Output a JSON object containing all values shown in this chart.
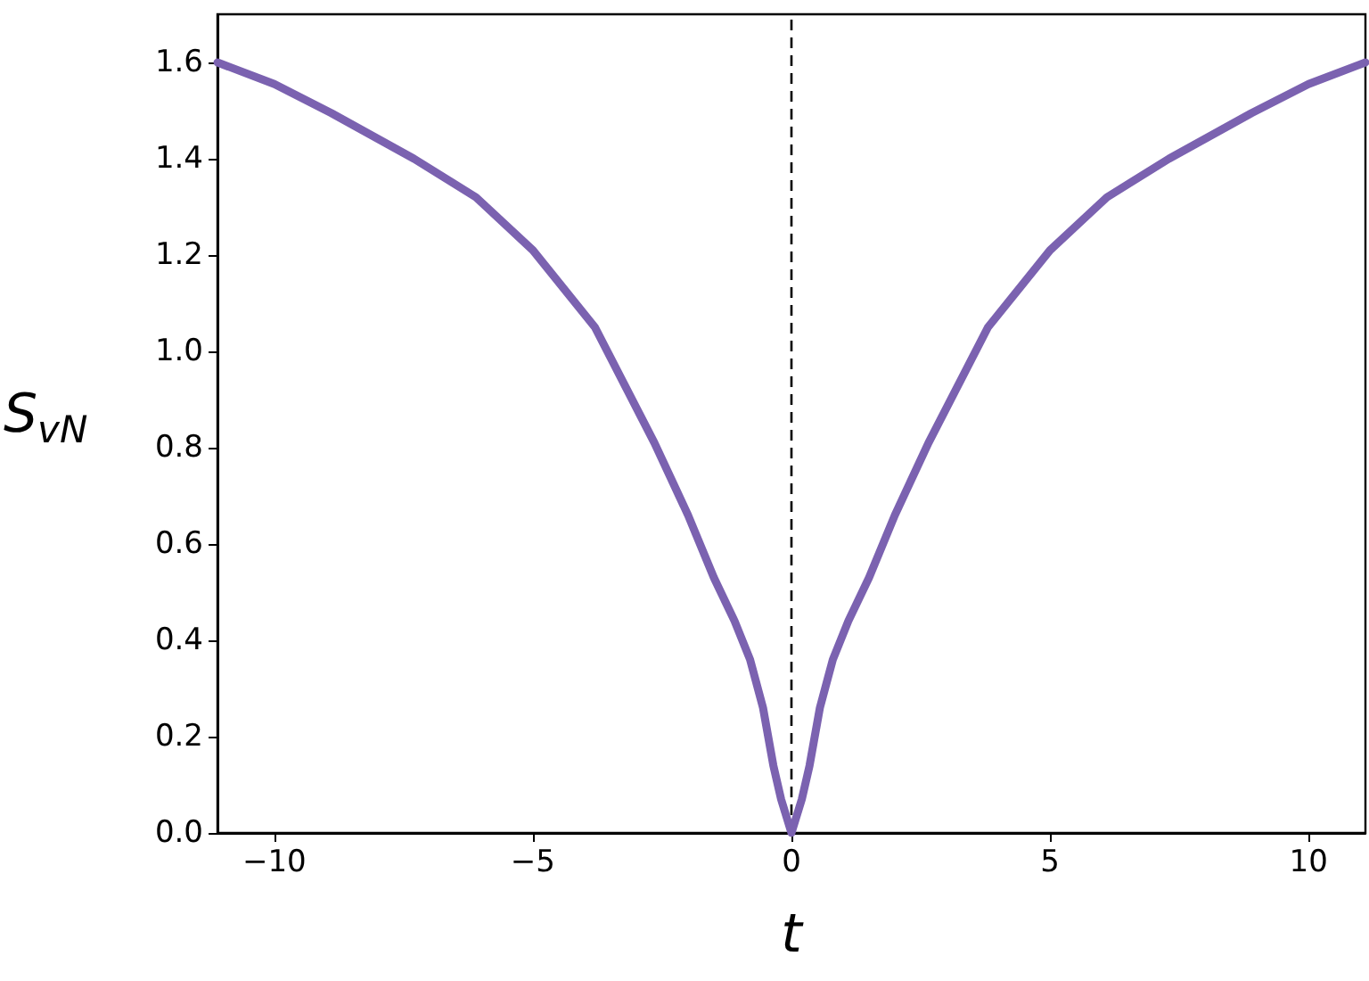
{
  "chart_data": {
    "type": "line",
    "xlabel": "t",
    "ylabel": "S$_{vN}$",
    "x": [
      -11.1,
      -10,
      -8.9,
      -7.3,
      -6.1,
      -5,
      -3.8,
      -2.65,
      -2,
      -1.5,
      -1.1,
      -0.8,
      -0.55,
      -0.35,
      -0.2,
      0,
      0.2,
      0.35,
      0.55,
      0.8,
      1.1,
      1.5,
      2,
      2.65,
      3.8,
      5,
      6.1,
      7.3,
      8.9,
      10,
      11.1
    ],
    "series": [
      {
        "color": "#7b62b0",
        "values": [
          1.6,
          1.555,
          1.495,
          1.4,
          1.32,
          1.21,
          1.05,
          0.81,
          0.66,
          0.53,
          0.44,
          0.36,
          0.26,
          0.14,
          0.07,
          0,
          0.07,
          0.14,
          0.26,
          0.36,
          0.44,
          0.53,
          0.66,
          0.81,
          1.05,
          1.21,
          1.32,
          1.4,
          1.495,
          1.555,
          1.6
        ]
      }
    ],
    "xlim": [
      -11.1,
      11.1
    ],
    "ylim": [
      0,
      1.7
    ],
    "xticks": [
      {
        "value": -10,
        "label": "−10"
      },
      {
        "value": -5,
        "label": "−5"
      },
      0,
      5,
      10
    ],
    "yticks": [
      {
        "value": 0,
        "label": "0.0"
      },
      0.2,
      0.4,
      0.6,
      0.8,
      {
        "value": 1,
        "label": "1.0"
      },
      1.2,
      1.4,
      1.6
    ],
    "ref_lines": [
      {
        "axis": "x",
        "value": 0,
        "color": "#000000",
        "line_style": "dashed"
      }
    ],
    "grid": false,
    "marker": "none",
    "line_style": "solid"
  }
}
